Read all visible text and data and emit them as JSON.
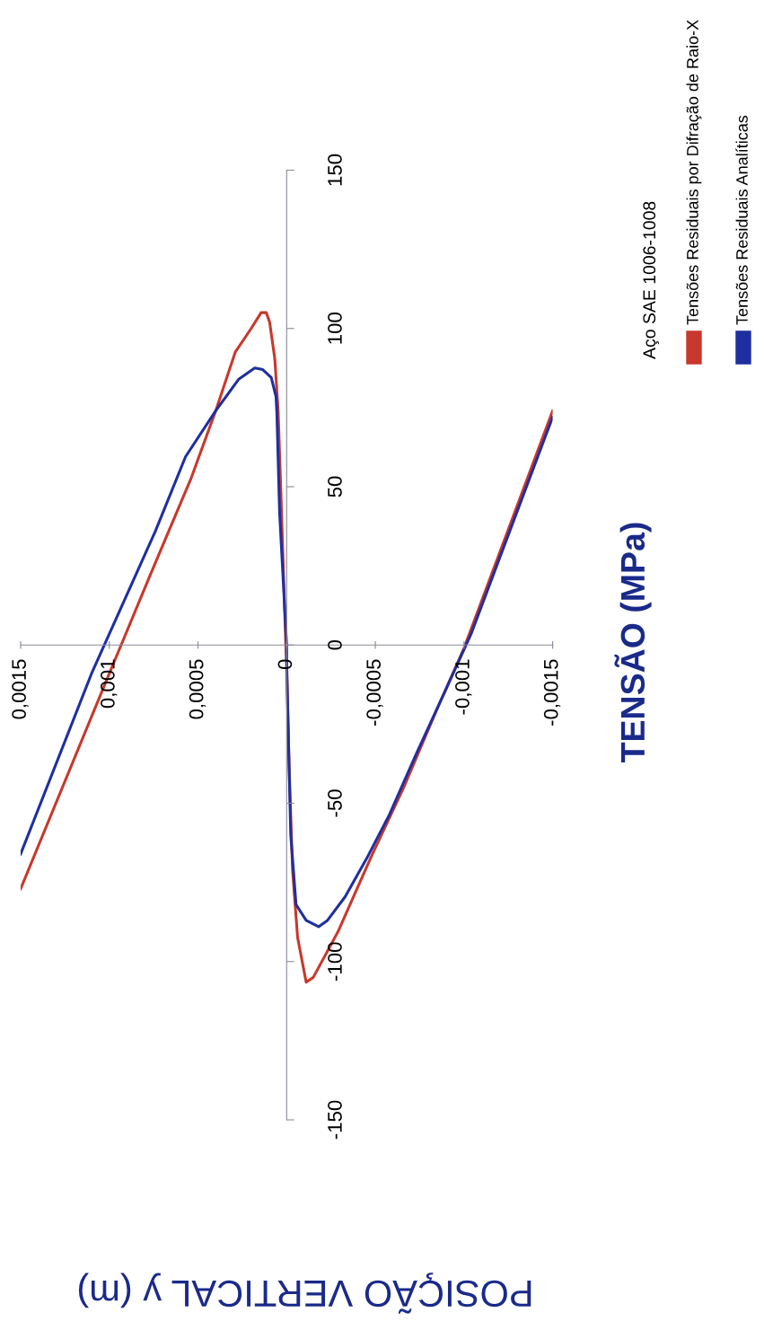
{
  "chart_data": {
    "type": "line",
    "xlabel": "POSIÇÃO VERTICAL y (m)",
    "ylabel": "TENSÃO (MPa)",
    "legend_title": "Aço SAE 1006-1008",
    "legend": "right",
    "grid": false,
    "ylim": [
      -150,
      150
    ],
    "yticks": [
      -150,
      -100,
      -50,
      0,
      50,
      100,
      150
    ],
    "xlim": [
      0.0015,
      -0.0015
    ],
    "xticks": [
      {
        "value": -0.0015,
        "label": "-0,0015"
      },
      {
        "value": -0.001,
        "label": "-0,001"
      },
      {
        "value": -0.0005,
        "label": "-0,0005"
      },
      {
        "value": 0,
        "label": "0"
      },
      {
        "value": 0.0005,
        "label": "0,0005"
      },
      {
        "value": 0.001,
        "label": "0,001"
      },
      {
        "value": 0.0015,
        "label": "0,0015"
      }
    ],
    "series": [
      {
        "name": "Tensões Residuais por Difração de Raio-X",
        "color": "#c8382c",
        "values": [
          -77,
          -9,
          22,
          52.5,
          74,
          92.5,
          100,
          105,
          105,
          102,
          90.5,
          74,
          42,
          0,
          -6,
          -38.5,
          -71,
          -92.5,
          -106.5,
          -105,
          -90.5,
          -66.5,
          -45,
          -20,
          -1,
          74
        ],
        "x": [
          0.0015,
          0.001,
          0.00077,
          0.00054,
          0.0004,
          0.00029,
          0.0002,
          0.000144,
          0.000115,
          9.6e-05,
          6.7e-05,
          4.8e-05,
          2.9e-05,
          5e-06,
          0,
          -1.4e-05,
          -3.3e-05,
          -6.2e-05,
          -0.00011,
          -0.00015,
          -0.00029,
          -0.00048,
          -0.00066,
          -0.00085,
          -0.001,
          -0.0015
        ]
      },
      {
        "name": "Tensões Residuais Analíticas",
        "color": "#1f2fa0",
        "values": [
          -66,
          -9,
          36,
          59.5,
          74,
          84,
          87.5,
          87,
          84.5,
          78.5,
          73,
          42,
          0,
          -6,
          -60,
          -82,
          -87,
          -89,
          -87,
          -79.5,
          -66.5,
          -53.5,
          -34.5,
          -15,
          3.5,
          72
        ],
        "x": [
          0.0015,
          0.0011,
          0.00074,
          0.00057,
          0.0004,
          0.00027,
          0.00018,
          0.000135,
          8.7e-05,
          6e-05,
          5.5e-05,
          4e-05,
          0,
          0,
          -2.3e-05,
          -5.3e-05,
          -0.00011,
          -0.00018,
          -0.00023,
          -0.00033,
          -0.00046,
          -0.00058,
          -0.00073,
          -0.00089,
          -0.00104,
          -0.0015
        ]
      }
    ]
  }
}
